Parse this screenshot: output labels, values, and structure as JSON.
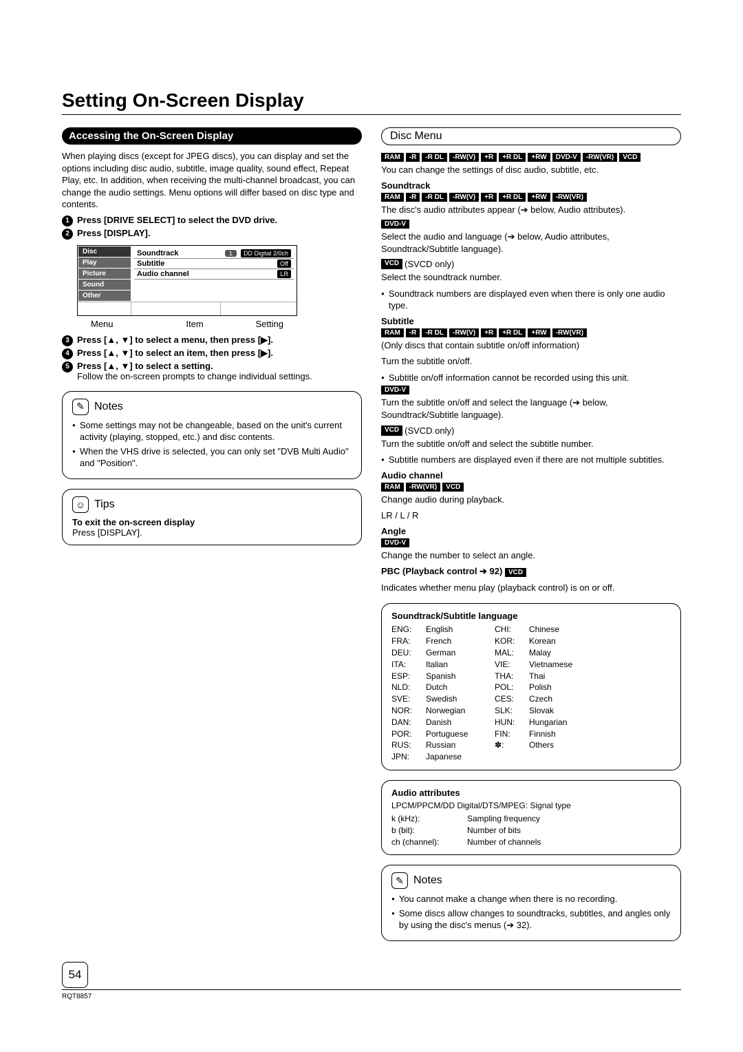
{
  "page": {
    "title": "Setting On-Screen Display",
    "number": "54",
    "doc_code": "RQT8857"
  },
  "left": {
    "section_title": "Accessing the On-Screen Display",
    "intro": "When playing discs (except for JPEG discs), you can display and set the options including disc audio, subtitle, image quality, sound effect, Repeat Play, etc. In addition, when receiving the multi-channel broadcast, you can change the audio settings. Menu options will differ based on disc type and contents.",
    "steps": {
      "s1": "Press [DRIVE SELECT] to select the DVD drive.",
      "s2": "Press [DISPLAY].",
      "s3": "Press [▲, ▼] to select a menu, then press [▶].",
      "s4": "Press [▲, ▼] to select an item, then press [▶].",
      "s5": "Press [▲, ▼] to select a setting.",
      "s5_follow": "Follow the on-screen prompts to change individual settings."
    },
    "menu": {
      "sidebar": [
        "Disc",
        "Play",
        "Picture",
        "Sound",
        "Other"
      ],
      "soundtrack_label": "Soundtrack",
      "soundtrack_val1": "1",
      "soundtrack_val2": "DD Digital 2/0ch",
      "subtitle_label": "Subtitle",
      "subtitle_val": "Off",
      "audio_label": "Audio channel",
      "audio_val": "LR"
    },
    "menu_labels": {
      "a": "Menu",
      "b": "Item",
      "c": "Setting"
    },
    "notes": {
      "title": "Notes",
      "n1": "Some settings may not be changeable, based on the unit's current activity (playing, stopped, etc.) and disc contents.",
      "n2": "When the VHS drive is selected, you can only set \"DVB Multi Audio\" and \"Position\"."
    },
    "tips": {
      "title": "Tips",
      "line1_bold": "To exit the on-screen display",
      "line2": "Press [DISPLAY]."
    }
  },
  "right": {
    "section_title": "Disc Menu",
    "tags_top": [
      "RAM",
      "-R",
      "-R DL",
      "-RW(V)",
      "+R",
      "+R DL",
      "+RW",
      "DVD-V",
      "-RW(VR)",
      "VCD"
    ],
    "intro": "You can change the settings of disc audio, subtitle, etc.",
    "soundtrack": {
      "title": "Soundtrack",
      "tags1": [
        "RAM",
        "-R",
        "-R DL",
        "-RW(V)",
        "+R",
        "+R DL",
        "+RW",
        "-RW(VR)"
      ],
      "line1": "The disc's audio attributes appear (➔ below, Audio attributes).",
      "tag2": "DVD-V",
      "line2": "Select the audio and language (➔ below, Audio attributes, Soundtrack/Subtitle language).",
      "tag3": "VCD",
      "svcd": "(SVCD only)",
      "line3": "Select the soundtrack number.",
      "bullet": "Soundtrack numbers are displayed even when there is only one audio type."
    },
    "subtitle": {
      "title": "Subtitle",
      "tags": [
        "RAM",
        "-R",
        "-R DL",
        "-RW(V)",
        "+R",
        "+R DL",
        "+RW",
        "-RW(VR)"
      ],
      "line1": "(Only discs that contain subtitle on/off information)",
      "line2": "Turn the subtitle on/off.",
      "bullet1": "Subtitle on/off information cannot be recorded using this unit.",
      "tag2": "DVD-V",
      "line3": "Turn the subtitle on/off and select the language (➔ below, Soundtrack/Subtitle language).",
      "tag3": "VCD",
      "svcd": "(SVCD only)",
      "line4": "Turn the subtitle on/off and select the subtitle number.",
      "bullet2": "Subtitle numbers are displayed even if there are not multiple subtitles."
    },
    "audio_channel": {
      "title": "Audio channel",
      "tags": [
        "RAM",
        "-RW(VR)",
        "VCD"
      ],
      "line1": "Change audio during playback.",
      "line2": "LR / L / R"
    },
    "angle": {
      "title": "Angle",
      "tag": "DVD-V",
      "line": "Change the number to select an angle."
    },
    "pbc": {
      "title": "PBC (Playback control ➔ 92)",
      "tag": "VCD",
      "line": "Indicates whether menu play (playback control) is on or off."
    },
    "lang": {
      "title": "Soundtrack/Subtitle language",
      "rows": [
        [
          "ENG:",
          "English",
          "CHI:",
          "Chinese"
        ],
        [
          "FRA:",
          "French",
          "KOR:",
          "Korean"
        ],
        [
          "DEU:",
          "German",
          "MAL:",
          "Malay"
        ],
        [
          "ITA:",
          "Italian",
          "VIE:",
          "Vietnamese"
        ],
        [
          "ESP:",
          "Spanish",
          "THA:",
          "Thai"
        ],
        [
          "NLD:",
          "Dutch",
          "POL:",
          "Polish"
        ],
        [
          "SVE:",
          "Swedish",
          "CES:",
          "Czech"
        ],
        [
          "NOR:",
          "Norwegian",
          "SLK:",
          "Slovak"
        ],
        [
          "DAN:",
          "Danish",
          "HUN:",
          "Hungarian"
        ],
        [
          "POR:",
          "Portuguese",
          "FIN:",
          "Finnish"
        ],
        [
          "RUS:",
          "Russian",
          "✽:",
          "Others"
        ],
        [
          "JPN:",
          "Japanese",
          "",
          ""
        ]
      ]
    },
    "attrs": {
      "title": "Audio attributes",
      "line0": "LPCM/PPCM/DD Digital/DTS/MPEG: Signal type",
      "rows": [
        [
          "k (kHz):",
          "Sampling frequency"
        ],
        [
          "b (bit):",
          "Number of bits"
        ],
        [
          "ch (channel):",
          "Number of channels"
        ]
      ]
    },
    "notes": {
      "title": "Notes",
      "n1": "You cannot make a change when there is no recording.",
      "n2": "Some discs allow changes to soundtracks, subtitles, and angles only by using the disc's menus (➔ 32)."
    }
  }
}
